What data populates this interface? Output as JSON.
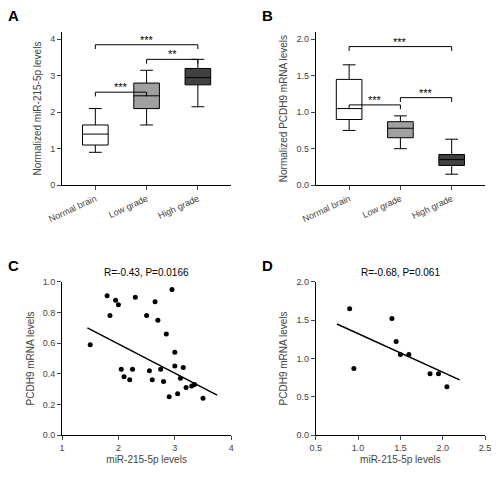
{
  "chart_data": [
    {
      "type": "box",
      "title": "A",
      "ylabel": "Normalized miR-215-5p levels",
      "categories": [
        "Normal brain",
        "Low grade",
        "High grade"
      ],
      "colors": [
        "white",
        "#a0a0a0",
        "#404040"
      ],
      "boxes": [
        {
          "median": 1.4,
          "q1": 1.1,
          "q3": 1.65,
          "whislo": 0.9,
          "whishi": 2.1
        },
        {
          "median": 2.45,
          "q1": 2.1,
          "q3": 2.8,
          "whislo": 1.65,
          "whishi": 3.15
        },
        {
          "median": 2.95,
          "q1": 2.75,
          "q3": 3.2,
          "whislo": 2.15,
          "whishi": 3.45
        }
      ],
      "ylim": [
        0,
        4.2
      ],
      "yticks": [
        0,
        1,
        2,
        3,
        4
      ],
      "grid": false,
      "significance": [
        {
          "from": "Normal brain",
          "to": "Low grade",
          "y": 2.55,
          "label": "***"
        },
        {
          "from": "Normal brain",
          "to": "High grade",
          "y": 3.85,
          "label": "***"
        },
        {
          "from": "Low grade",
          "to": "High grade",
          "y": 3.45,
          "label": "**"
        }
      ]
    },
    {
      "type": "box",
      "title": "B",
      "ylabel": "Normalized PCDH9 mRNA levels",
      "categories": [
        "Normal brain",
        "Low grade",
        "High grade"
      ],
      "colors": [
        "white",
        "#a0a0a0",
        "#404040"
      ],
      "boxes": [
        {
          "median": 1.05,
          "q1": 0.9,
          "q3": 1.45,
          "whislo": 0.75,
          "whishi": 1.65
        },
        {
          "median": 0.78,
          "q1": 0.65,
          "q3": 0.87,
          "whislo": 0.5,
          "whishi": 0.95
        },
        {
          "median": 0.35,
          "q1": 0.27,
          "q3": 0.42,
          "whislo": 0.15,
          "whishi": 0.63
        }
      ],
      "ylim": [
        0,
        2.1
      ],
      "yticks": [
        {
          "value": 0,
          "label": "0.0"
        },
        0.5,
        {
          "value": 1,
          "label": "1.0"
        },
        1.5,
        {
          "value": 2,
          "label": "2.0"
        }
      ],
      "grid": false,
      "significance": [
        {
          "from": "Normal brain",
          "to": "Low grade",
          "y": 1.1,
          "label": "***"
        },
        {
          "from": "Normal brain",
          "to": "High grade",
          "y": 1.9,
          "label": "***"
        },
        {
          "from": "Low grade",
          "to": "High grade",
          "y": 1.2,
          "label": "***"
        }
      ]
    },
    {
      "type": "scatter",
      "title": "C",
      "xlabel": "miR-215-5p levels",
      "ylabel": "PCDH9 mRNA levels",
      "annotation": "R=-0.43, P=0.0166",
      "xlim": [
        1,
        4
      ],
      "ylim": [
        0,
        1
      ],
      "xticks": [
        1,
        2,
        3,
        4
      ],
      "yticks": [
        {
          "value": 0,
          "label": "0.0"
        },
        0.2,
        0.4,
        0.6,
        0.8,
        {
          "value": 1,
          "label": "1.0"
        }
      ],
      "grid": false,
      "series": [
        {
          "type": "scatter",
          "color": "black",
          "marker": "circle",
          "x": [
            1.5,
            1.8,
            1.85,
            1.95,
            2.0,
            2.05,
            2.1,
            2.2,
            2.25,
            2.3,
            2.5,
            2.55,
            2.6,
            2.65,
            2.7,
            2.75,
            2.8,
            2.85,
            2.9,
            2.95,
            3.0,
            3.0,
            3.05,
            3.1,
            3.15,
            3.2,
            3.3,
            3.35,
            3.5
          ],
          "values": [
            0.59,
            0.91,
            0.78,
            0.88,
            0.85,
            0.43,
            0.38,
            0.36,
            0.43,
            0.9,
            0.78,
            0.42,
            0.36,
            0.87,
            0.75,
            0.43,
            0.35,
            0.66,
            0.25,
            0.95,
            0.54,
            0.45,
            0.27,
            0.37,
            0.44,
            0.31,
            0.32,
            0.33,
            0.24
          ]
        },
        {
          "type": "line",
          "color": "black",
          "line_style": "solid",
          "x": [
            1.45,
            3.75
          ],
          "values": [
            0.7,
            0.26
          ]
        }
      ]
    },
    {
      "type": "scatter",
      "title": "D",
      "xlabel": "miR-215-5p levels",
      "ylabel": "PCDH9 mRNA levels",
      "annotation": "R=-0.68, P=0.061",
      "xlim": [
        0.5,
        2.5
      ],
      "ylim": [
        0,
        2
      ],
      "xticks": [
        0.5,
        {
          "value": 1,
          "label": "1.0"
        },
        1.5,
        {
          "value": 2,
          "label": "2.0"
        },
        2.5
      ],
      "yticks": [
        {
          "value": 0,
          "label": "0.0"
        },
        0.5,
        {
          "value": 1,
          "label": "1.0"
        },
        1.5,
        {
          "value": 2,
          "label": "2.0"
        }
      ],
      "grid": false,
      "series": [
        {
          "type": "scatter",
          "color": "black",
          "marker": "circle",
          "x": [
            0.9,
            0.95,
            1.4,
            1.45,
            1.5,
            1.6,
            1.85,
            1.95,
            2.05
          ],
          "values": [
            1.65,
            0.87,
            1.52,
            1.22,
            1.05,
            1.05,
            0.8,
            0.8,
            0.63
          ]
        },
        {
          "type": "line",
          "color": "black",
          "line_style": "solid",
          "x": [
            0.75,
            2.2
          ],
          "values": [
            1.45,
            0.72
          ]
        }
      ]
    }
  ]
}
